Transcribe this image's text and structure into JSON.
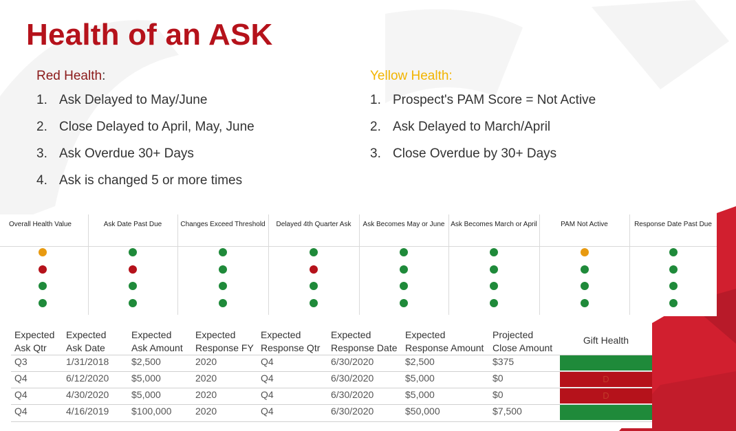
{
  "title": "Health of an ASK",
  "red_health": {
    "heading": "Red Health",
    "items": [
      {
        "num": "1.",
        "text": "Ask Delayed to May/June"
      },
      {
        "num": "2.",
        "text": "Close Delayed to April, May, June"
      },
      {
        "num": "3.",
        "text": "Ask Overdue 30+ Days"
      },
      {
        "num": "4.",
        "text": "Ask is changed 5 or more times"
      }
    ]
  },
  "yellow_health": {
    "heading": "Yellow Health:",
    "items": [
      {
        "num": "1.",
        "text": "Prospect's PAM Score = Not Active"
      },
      {
        "num": "2.",
        "text": "Ask Delayed to March/April"
      },
      {
        "num": "3.",
        "text": "Close Overdue by 30+ Days"
      }
    ]
  },
  "indicators": {
    "columns": [
      {
        "label": "Overall Health Value",
        "dots": [
          "yellow",
          "red",
          "green",
          "green"
        ]
      },
      {
        "label": "Ask Date Past Due",
        "dots": [
          "green",
          "red",
          "green",
          "green"
        ]
      },
      {
        "label": "Changes Exceed Threshold",
        "dots": [
          "green",
          "green",
          "green",
          "green"
        ]
      },
      {
        "label": "Delayed 4th Quarter Ask",
        "dots": [
          "green",
          "red",
          "green",
          "green"
        ]
      },
      {
        "label": "Ask Becomes May or June",
        "dots": [
          "green",
          "green",
          "green",
          "green"
        ]
      },
      {
        "label": "Ask Becomes March or April",
        "dots": [
          "green",
          "green",
          "green",
          "green"
        ]
      },
      {
        "label": "PAM Not Active",
        "dots": [
          "yellow",
          "green",
          "green",
          "green"
        ]
      },
      {
        "label": "Response Date Past Due",
        "dots": [
          "green",
          "green",
          "green",
          "green"
        ]
      }
    ]
  },
  "data_table": {
    "headers": [
      [
        "Expected",
        "Ask Qtr"
      ],
      [
        "Expected",
        "Ask Date"
      ],
      [
        "Expected",
        "Ask Amount"
      ],
      [
        "Expected",
        "Response FY"
      ],
      [
        "Expected",
        "Response Qtr"
      ],
      [
        "Expected",
        "Response Date"
      ],
      [
        "Expected",
        "Response Amount"
      ],
      [
        "Projected",
        "Close Amount"
      ]
    ],
    "gift_health_label": "Gift Health",
    "rows": [
      {
        "cells": [
          "Q3",
          "1/31/2018",
          "$2,500",
          "2020",
          "Q4",
          "6/30/2020",
          "$2,500",
          "$375"
        ],
        "health": "green",
        "mark": ""
      },
      {
        "cells": [
          "Q4",
          "6/12/2020",
          "$5,000",
          "2020",
          "Q4",
          "6/30/2020",
          "$5,000",
          "$0"
        ],
        "health": "red",
        "mark": "D"
      },
      {
        "cells": [
          "Q4",
          "4/30/2020",
          "$5,000",
          "2020",
          "Q4",
          "6/30/2020",
          "$5,000",
          "$0"
        ],
        "health": "red",
        "mark": "D"
      },
      {
        "cells": [
          "Q4",
          "4/16/2019",
          "$100,000",
          "2020",
          "Q4",
          "6/30/2020",
          "$50,000",
          "$7,500"
        ],
        "health": "green",
        "mark": ""
      }
    ]
  },
  "colors": {
    "title": "#b5121b",
    "green": "#1f8a3a",
    "red": "#b5121b",
    "yellow": "#e89a10",
    "brand_red": "#d11f2f"
  }
}
